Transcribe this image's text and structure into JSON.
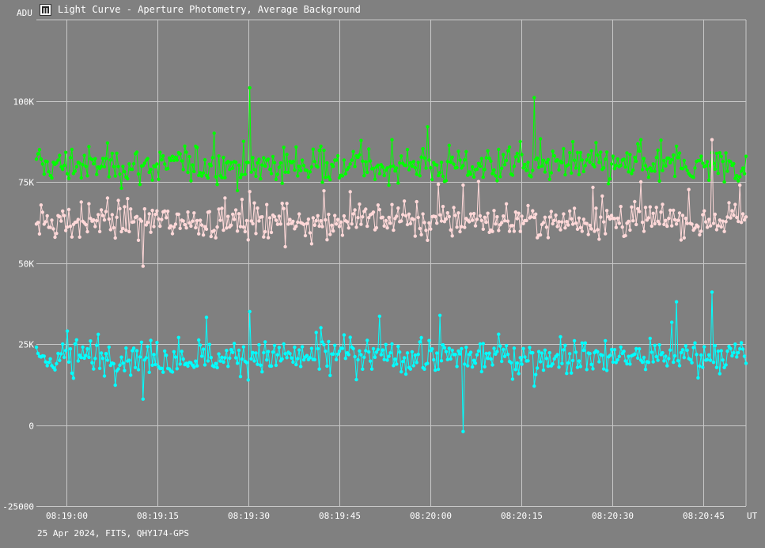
{
  "window": {
    "title": "Light Curve - Aperture Photometry, Average Background",
    "icon": "light-curve-app-icon"
  },
  "footer": {
    "info": "25 Apr 2024, FITS, QHY174-GPS"
  },
  "colors": {
    "background": "#808080",
    "grid": "#c8c8c8",
    "text": "#ffffff",
    "green_series": "#00ff00",
    "pink_series": "#ffd8d8",
    "cyan_series": "#00ffff"
  },
  "chart_data": {
    "type": "line",
    "ylabel": "ADU",
    "xlabel": "UT",
    "ylim": [
      -25000,
      125000
    ],
    "y_ticks": [
      {
        "value": 100000,
        "label": "100K"
      },
      {
        "value": 75000,
        "label": "75K"
      },
      {
        "value": 50000,
        "label": "50K"
      },
      {
        "value": 25000,
        "label": "25K"
      },
      {
        "value": 0,
        "label": "0"
      },
      {
        "value": -25000,
        "label": "-25000"
      }
    ],
    "x_ticks": [
      "08:19:00",
      "08:19:15",
      "08:19:30",
      "08:19:45",
      "08:20:00",
      "08:20:15",
      "08:20:30",
      "08:20:45"
    ],
    "x_range": [
      "08:18:55",
      "08:20:52"
    ],
    "grid": true,
    "series": [
      {
        "color": "#00ff00",
        "mean": 80000,
        "noise": 7000,
        "min": 65000,
        "max": 104000,
        "values_sample": [
          82000,
          85000,
          87000,
          80000,
          84000,
          90000,
          104000,
          78000,
          86000,
          83000,
          88000,
          92000,
          80000,
          85000,
          101000,
          84000,
          82000,
          88000,
          86000,
          84000
        ]
      },
      {
        "color": "#ffd8d8",
        "mean": 63000,
        "noise": 7000,
        "min": 43000,
        "max": 88000,
        "values_sample": [
          62000,
          58000,
          70000,
          49000,
          65000,
          60000,
          72000,
          55000,
          63000,
          61000,
          68000,
          57000,
          74000,
          60000,
          64000,
          66000,
          59000,
          75000,
          62000,
          88000
        ]
      },
      {
        "color": "#00ffff",
        "mean": 21000,
        "noise": 7000,
        "min": -3000,
        "max": 41000,
        "values_sample": [
          24000,
          16000,
          20000,
          8000,
          27000,
          18000,
          35000,
          22000,
          30000,
          14000,
          25000,
          19000,
          -2000,
          28000,
          12000,
          22000,
          26000,
          20000,
          38000,
          41000
        ]
      }
    ]
  }
}
